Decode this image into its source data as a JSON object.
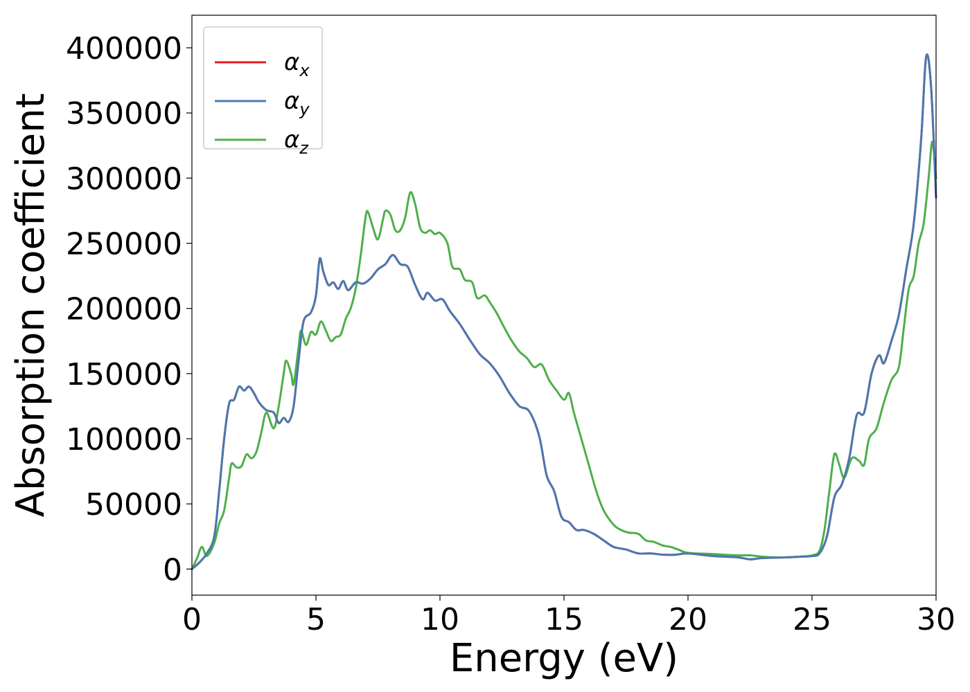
{
  "chart_data": {
    "type": "line",
    "title": "",
    "xlabel": "Energy (eV)",
    "ylabel": "Absorption coefficient",
    "xlim": [
      0,
      30
    ],
    "ylim": [
      -20000,
      425000
    ],
    "xticks": [
      0,
      5,
      10,
      15,
      20,
      25,
      30
    ],
    "yticks": [
      0,
      50000,
      100000,
      150000,
      200000,
      250000,
      300000,
      350000,
      400000
    ],
    "grid": false,
    "legend_position": "top-left",
    "series": [
      {
        "name": "αx",
        "symbol": "α",
        "subscript": "x",
        "color": "#e41a1c",
        "points": [
          [
            0,
            0
          ],
          [
            0.3,
            5000
          ],
          [
            0.6,
            12000
          ],
          [
            0.9,
            25000
          ],
          [
            1.1,
            60000
          ],
          [
            1.3,
            100000
          ],
          [
            1.5,
            127000
          ],
          [
            1.7,
            130000
          ],
          [
            1.9,
            140000
          ],
          [
            2.1,
            137000
          ],
          [
            2.3,
            140000
          ],
          [
            2.5,
            135000
          ],
          [
            2.7,
            128000
          ],
          [
            3.0,
            122000
          ],
          [
            3.3,
            120000
          ],
          [
            3.5,
            112000
          ],
          [
            3.7,
            116000
          ],
          [
            3.9,
            113000
          ],
          [
            4.1,
            125000
          ],
          [
            4.3,
            160000
          ],
          [
            4.5,
            190000
          ],
          [
            4.8,
            197000
          ],
          [
            5.0,
            210000
          ],
          [
            5.15,
            238000
          ],
          [
            5.3,
            228000
          ],
          [
            5.5,
            218000
          ],
          [
            5.7,
            220000
          ],
          [
            5.9,
            215000
          ],
          [
            6.1,
            221000
          ],
          [
            6.3,
            214000
          ],
          [
            6.6,
            220000
          ],
          [
            6.9,
            219000
          ],
          [
            7.2,
            223000
          ],
          [
            7.5,
            230000
          ],
          [
            7.8,
            234000
          ],
          [
            8.1,
            241000
          ],
          [
            8.4,
            234000
          ],
          [
            8.7,
            232000
          ],
          [
            9.0,
            218000
          ],
          [
            9.3,
            207000
          ],
          [
            9.5,
            212000
          ],
          [
            9.8,
            206000
          ],
          [
            10.1,
            207000
          ],
          [
            10.4,
            198000
          ],
          [
            10.8,
            188000
          ],
          [
            11.2,
            176000
          ],
          [
            11.6,
            165000
          ],
          [
            12.0,
            158000
          ],
          [
            12.4,
            148000
          ],
          [
            12.8,
            135000
          ],
          [
            13.2,
            125000
          ],
          [
            13.6,
            121000
          ],
          [
            14.0,
            102000
          ],
          [
            14.3,
            72000
          ],
          [
            14.6,
            60000
          ],
          [
            14.9,
            40000
          ],
          [
            15.2,
            36000
          ],
          [
            15.5,
            30000
          ],
          [
            15.8,
            30000
          ],
          [
            16.2,
            27000
          ],
          [
            16.6,
            22000
          ],
          [
            17.0,
            17000
          ],
          [
            17.5,
            15000
          ],
          [
            18.0,
            12000
          ],
          [
            18.5,
            12000
          ],
          [
            19.0,
            11000
          ],
          [
            19.5,
            11000
          ],
          [
            20.0,
            12000
          ],
          [
            21.0,
            10000
          ],
          [
            22.0,
            9000
          ],
          [
            22.5,
            7500
          ],
          [
            23.0,
            8500
          ],
          [
            24.0,
            9000
          ],
          [
            24.5,
            9500
          ],
          [
            25.0,
            10000
          ],
          [
            25.3,
            12000
          ],
          [
            25.6,
            25000
          ],
          [
            25.9,
            55000
          ],
          [
            26.2,
            65000
          ],
          [
            26.5,
            85000
          ],
          [
            26.8,
            118000
          ],
          [
            27.1,
            120000
          ],
          [
            27.4,
            150000
          ],
          [
            27.7,
            164000
          ],
          [
            27.9,
            158000
          ],
          [
            28.2,
            175000
          ],
          [
            28.5,
            195000
          ],
          [
            28.8,
            230000
          ],
          [
            29.1,
            265000
          ],
          [
            29.4,
            330000
          ],
          [
            29.6,
            393000
          ],
          [
            29.8,
            370000
          ],
          [
            30.0,
            285000
          ]
        ]
      },
      {
        "name": "αy",
        "symbol": "α",
        "subscript": "y",
        "color": "#4a78b0",
        "points": [
          [
            0,
            0
          ],
          [
            0.3,
            5000
          ],
          [
            0.6,
            12000
          ],
          [
            0.9,
            25000
          ],
          [
            1.1,
            60000
          ],
          [
            1.3,
            100000
          ],
          [
            1.5,
            127000
          ],
          [
            1.7,
            130000
          ],
          [
            1.9,
            140000
          ],
          [
            2.1,
            137000
          ],
          [
            2.3,
            140000
          ],
          [
            2.5,
            135000
          ],
          [
            2.7,
            128000
          ],
          [
            3.0,
            122000
          ],
          [
            3.3,
            120000
          ],
          [
            3.5,
            112000
          ],
          [
            3.7,
            116000
          ],
          [
            3.9,
            113000
          ],
          [
            4.1,
            125000
          ],
          [
            4.3,
            160000
          ],
          [
            4.5,
            190000
          ],
          [
            4.8,
            197000
          ],
          [
            5.0,
            210000
          ],
          [
            5.15,
            238000
          ],
          [
            5.3,
            228000
          ],
          [
            5.5,
            218000
          ],
          [
            5.7,
            220000
          ],
          [
            5.9,
            215000
          ],
          [
            6.1,
            221000
          ],
          [
            6.3,
            214000
          ],
          [
            6.6,
            220000
          ],
          [
            6.9,
            219000
          ],
          [
            7.2,
            223000
          ],
          [
            7.5,
            230000
          ],
          [
            7.8,
            234000
          ],
          [
            8.1,
            241000
          ],
          [
            8.4,
            234000
          ],
          [
            8.7,
            232000
          ],
          [
            9.0,
            218000
          ],
          [
            9.3,
            207000
          ],
          [
            9.5,
            212000
          ],
          [
            9.8,
            206000
          ],
          [
            10.1,
            207000
          ],
          [
            10.4,
            198000
          ],
          [
            10.8,
            188000
          ],
          [
            11.2,
            176000
          ],
          [
            11.6,
            165000
          ],
          [
            12.0,
            158000
          ],
          [
            12.4,
            148000
          ],
          [
            12.8,
            135000
          ],
          [
            13.2,
            125000
          ],
          [
            13.6,
            121000
          ],
          [
            14.0,
            102000
          ],
          [
            14.3,
            72000
          ],
          [
            14.6,
            60000
          ],
          [
            14.9,
            40000
          ],
          [
            15.2,
            36000
          ],
          [
            15.5,
            30000
          ],
          [
            15.8,
            30000
          ],
          [
            16.2,
            27000
          ],
          [
            16.6,
            22000
          ],
          [
            17.0,
            17000
          ],
          [
            17.5,
            15000
          ],
          [
            18.0,
            12000
          ],
          [
            18.5,
            12000
          ],
          [
            19.0,
            11000
          ],
          [
            19.5,
            11000
          ],
          [
            20.0,
            12000
          ],
          [
            21.0,
            10000
          ],
          [
            22.0,
            9000
          ],
          [
            22.5,
            7500
          ],
          [
            23.0,
            8500
          ],
          [
            24.0,
            9000
          ],
          [
            24.5,
            9500
          ],
          [
            25.0,
            10000
          ],
          [
            25.3,
            12000
          ],
          [
            25.6,
            25000
          ],
          [
            25.9,
            55000
          ],
          [
            26.2,
            65000
          ],
          [
            26.5,
            85000
          ],
          [
            26.8,
            118000
          ],
          [
            27.1,
            120000
          ],
          [
            27.4,
            150000
          ],
          [
            27.7,
            164000
          ],
          [
            27.9,
            158000
          ],
          [
            28.2,
            175000
          ],
          [
            28.5,
            195000
          ],
          [
            28.8,
            230000
          ],
          [
            29.1,
            265000
          ],
          [
            29.4,
            330000
          ],
          [
            29.6,
            393000
          ],
          [
            29.8,
            370000
          ],
          [
            30.0,
            285000
          ]
        ]
      },
      {
        "name": "αz",
        "symbol": "α",
        "subscript": "z",
        "color": "#4daf4a",
        "points": [
          [
            0,
            0
          ],
          [
            0.2,
            8000
          ],
          [
            0.4,
            17000
          ],
          [
            0.6,
            10000
          ],
          [
            0.9,
            20000
          ],
          [
            1.1,
            35000
          ],
          [
            1.3,
            45000
          ],
          [
            1.5,
            70000
          ],
          [
            1.6,
            81000
          ],
          [
            1.8,
            78000
          ],
          [
            2.0,
            79000
          ],
          [
            2.2,
            88000
          ],
          [
            2.4,
            85000
          ],
          [
            2.6,
            90000
          ],
          [
            2.8,
            105000
          ],
          [
            3.0,
            120000
          ],
          [
            3.3,
            108000
          ],
          [
            3.5,
            125000
          ],
          [
            3.7,
            150000
          ],
          [
            3.8,
            160000
          ],
          [
            4.0,
            150000
          ],
          [
            4.1,
            142000
          ],
          [
            4.3,
            170000
          ],
          [
            4.4,
            183000
          ],
          [
            4.6,
            172000
          ],
          [
            4.8,
            182000
          ],
          [
            5.0,
            180000
          ],
          [
            5.2,
            190000
          ],
          [
            5.4,
            183000
          ],
          [
            5.6,
            175000
          ],
          [
            5.8,
            178000
          ],
          [
            6.0,
            180000
          ],
          [
            6.2,
            192000
          ],
          [
            6.4,
            200000
          ],
          [
            6.6,
            215000
          ],
          [
            6.8,
            240000
          ],
          [
            7.0,
            270000
          ],
          [
            7.1,
            274000
          ],
          [
            7.3,
            262000
          ],
          [
            7.5,
            253000
          ],
          [
            7.7,
            268000
          ],
          [
            7.8,
            275000
          ],
          [
            8.0,
            272000
          ],
          [
            8.2,
            260000
          ],
          [
            8.4,
            260000
          ],
          [
            8.6,
            270000
          ],
          [
            8.8,
            289000
          ],
          [
            9.0,
            280000
          ],
          [
            9.2,
            262000
          ],
          [
            9.4,
            258000
          ],
          [
            9.6,
            260000
          ],
          [
            9.8,
            257000
          ],
          [
            10.0,
            258000
          ],
          [
            10.3,
            250000
          ],
          [
            10.5,
            232000
          ],
          [
            10.8,
            230000
          ],
          [
            11.0,
            222000
          ],
          [
            11.3,
            220000
          ],
          [
            11.5,
            208000
          ],
          [
            11.8,
            210000
          ],
          [
            12.0,
            205000
          ],
          [
            12.3,
            196000
          ],
          [
            12.6,
            185000
          ],
          [
            12.9,
            175000
          ],
          [
            13.2,
            167000
          ],
          [
            13.5,
            162000
          ],
          [
            13.8,
            155000
          ],
          [
            14.1,
            157000
          ],
          [
            14.4,
            145000
          ],
          [
            14.7,
            137000
          ],
          [
            15.0,
            130000
          ],
          [
            15.2,
            135000
          ],
          [
            15.4,
            120000
          ],
          [
            15.7,
            100000
          ],
          [
            16.0,
            80000
          ],
          [
            16.3,
            60000
          ],
          [
            16.6,
            45000
          ],
          [
            17.0,
            34000
          ],
          [
            17.3,
            30000
          ],
          [
            17.6,
            28000
          ],
          [
            18.0,
            27000
          ],
          [
            18.3,
            22000
          ],
          [
            18.6,
            21000
          ],
          [
            19.0,
            18000
          ],
          [
            19.3,
            17000
          ],
          [
            19.6,
            15000
          ],
          [
            20.0,
            12500
          ],
          [
            21.0,
            11500
          ],
          [
            22.0,
            10500
          ],
          [
            22.5,
            10500
          ],
          [
            23.0,
            9500
          ],
          [
            23.5,
            9000
          ],
          [
            24.0,
            9000
          ],
          [
            24.5,
            9500
          ],
          [
            25.0,
            10500
          ],
          [
            25.3,
            14000
          ],
          [
            25.5,
            30000
          ],
          [
            25.7,
            60000
          ],
          [
            25.9,
            88000
          ],
          [
            26.1,
            80000
          ],
          [
            26.3,
            70000
          ],
          [
            26.6,
            85000
          ],
          [
            26.9,
            83000
          ],
          [
            27.1,
            80000
          ],
          [
            27.3,
            100000
          ],
          [
            27.6,
            108000
          ],
          [
            27.9,
            128000
          ],
          [
            28.2,
            145000
          ],
          [
            28.5,
            155000
          ],
          [
            28.7,
            185000
          ],
          [
            28.9,
            215000
          ],
          [
            29.1,
            225000
          ],
          [
            29.3,
            250000
          ],
          [
            29.5,
            265000
          ],
          [
            29.7,
            300000
          ],
          [
            29.85,
            328000
          ],
          [
            30.0,
            300000
          ]
        ]
      }
    ]
  }
}
